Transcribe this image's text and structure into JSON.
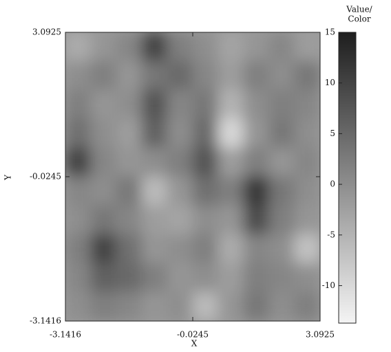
{
  "chart_data": {
    "type": "heatmap",
    "x_label": "X",
    "y_label": "Y",
    "xlim": [
      -3.1416,
      3.0925
    ],
    "ylim": [
      -3.1416,
      3.0925
    ],
    "xticks": [
      -3.1416,
      -0.0245,
      3.0925
    ],
    "yticks": [
      -3.1416,
      -0.0245,
      3.0925
    ],
    "z": [
      [
        -4,
        -1,
        1,
        10,
        2,
        0,
        -3,
        -1,
        1,
        -2
      ],
      [
        0,
        2,
        -1,
        3,
        5,
        1,
        -2,
        2,
        0,
        3
      ],
      [
        2,
        -1,
        0,
        8,
        1,
        3,
        -5,
        0,
        2,
        1
      ],
      [
        4,
        0,
        -2,
        6,
        0,
        5,
        -10,
        -1,
        3,
        0
      ],
      [
        10,
        1,
        -1,
        0,
        2,
        8,
        -2,
        2,
        -1,
        1
      ],
      [
        1,
        0,
        3,
        -6,
        -1,
        4,
        2,
        12,
        3,
        0
      ],
      [
        0,
        3,
        1,
        -2,
        -3,
        0,
        -1,
        9,
        2,
        -1
      ],
      [
        2,
        10,
        4,
        -1,
        0,
        2,
        -4,
        1,
        0,
        -7
      ],
      [
        1,
        6,
        5,
        2,
        -1,
        0,
        -2,
        2,
        1,
        0
      ],
      [
        0,
        2,
        1,
        -1,
        0,
        -6,
        -1,
        3,
        0,
        2
      ]
    ],
    "colormap": [
      "#f4f4f4",
      "#1e1e1e"
    ],
    "colorbar": {
      "title": [
        "Value/",
        "Color"
      ],
      "lim": [
        -13.7,
        15
      ],
      "ticks": [
        -10,
        -5,
        0,
        5,
        10,
        15
      ]
    }
  }
}
